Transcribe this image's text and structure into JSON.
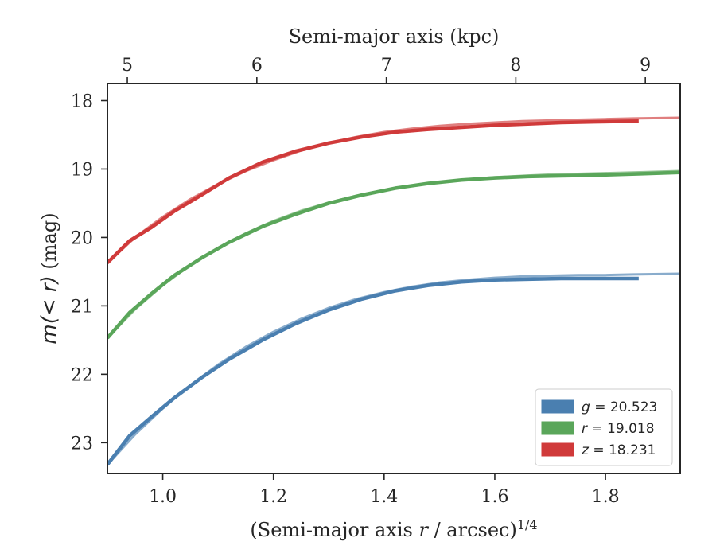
{
  "chart_data": {
    "type": "line",
    "xlabel": "(Semi-major axis r / arcsec)1/4",
    "xlabel_parts": {
      "prefix": "(Semi-major axis ",
      "var": "r",
      "mid": " / arcsec)",
      "sup": "1/4"
    },
    "ylabel": "m(< r) (mag)",
    "ylabel_parts": {
      "math": "m(< r)",
      "unit": " (mag)"
    },
    "top_xlabel": "Semi-major axis (kpc)",
    "xlim": [
      0.9,
      1.935
    ],
    "ylim": [
      23.45,
      17.75
    ],
    "y_inverted": true,
    "xticks": [
      1.0,
      1.2,
      1.4,
      1.6,
      1.8
    ],
    "xtick_labels": [
      "1.0",
      "1.2",
      "1.4",
      "1.6",
      "1.8"
    ],
    "yticks": [
      18,
      19,
      20,
      21,
      22,
      23
    ],
    "ytick_labels": [
      "18",
      "19",
      "20",
      "21",
      "22",
      "23"
    ],
    "top_xticks_kpc": [
      5,
      6,
      7,
      8,
      9
    ],
    "top_xtick_labels": [
      "5",
      "6",
      "7",
      "8",
      "9"
    ],
    "top_axis_x_at_5kpc": 0.936,
    "top_axis_x_at_9kpc": 1.872,
    "legend_position": "lower right",
    "grid": false,
    "series": [
      {
        "name": "g = 20.523",
        "var": "g",
        "value": "20.523",
        "color": "#4a7fb0",
        "x": [
          0.9,
          0.94,
          0.98,
          1.02,
          1.07,
          1.12,
          1.18,
          1.24,
          1.3,
          1.36,
          1.42,
          1.48,
          1.54,
          1.6,
          1.66,
          1.72,
          1.78,
          1.86
        ],
        "y": [
          23.32,
          22.9,
          22.62,
          22.35,
          22.05,
          21.78,
          21.5,
          21.26,
          21.06,
          20.9,
          20.78,
          20.7,
          20.65,
          20.62,
          20.61,
          20.6,
          20.6,
          20.6
        ],
        "model_x": [
          0.9,
          0.95,
          1.0,
          1.05,
          1.1,
          1.15,
          1.2,
          1.25,
          1.3,
          1.35,
          1.4,
          1.45,
          1.5,
          1.55,
          1.6,
          1.65,
          1.7,
          1.75,
          1.8,
          1.85,
          1.935
        ],
        "model_y": [
          23.32,
          22.88,
          22.5,
          22.16,
          21.86,
          21.6,
          21.38,
          21.19,
          21.03,
          20.9,
          20.8,
          20.72,
          20.66,
          20.62,
          20.59,
          20.57,
          20.56,
          20.55,
          20.55,
          20.54,
          20.53
        ]
      },
      {
        "name": "r = 19.018",
        "var": "r",
        "value": "19.018",
        "color": "#5aa65a",
        "x": [
          0.9,
          0.94,
          0.98,
          1.02,
          1.07,
          1.12,
          1.18,
          1.24,
          1.3,
          1.36,
          1.42,
          1.48,
          1.54,
          1.6,
          1.66,
          1.72,
          1.78,
          1.86,
          1.935
        ],
        "y": [
          21.47,
          21.1,
          20.82,
          20.56,
          20.3,
          20.07,
          19.84,
          19.66,
          19.5,
          19.38,
          19.28,
          19.21,
          19.16,
          19.13,
          19.11,
          19.1,
          19.09,
          19.07,
          19.05
        ],
        "model_x": [
          0.9,
          0.95,
          1.0,
          1.05,
          1.1,
          1.15,
          1.2,
          1.25,
          1.3,
          1.35,
          1.4,
          1.45,
          1.5,
          1.55,
          1.6,
          1.65,
          1.7,
          1.75,
          1.8,
          1.85,
          1.935
        ],
        "model_y": [
          21.47,
          21.05,
          20.7,
          20.4,
          20.15,
          19.94,
          19.76,
          19.61,
          19.49,
          19.39,
          19.31,
          19.24,
          19.19,
          19.15,
          19.12,
          19.1,
          19.08,
          19.07,
          19.06,
          19.05,
          19.03
        ]
      },
      {
        "name": "z = 18.231",
        "var": "z",
        "value": "18.231",
        "color": "#d03a3a",
        "x": [
          0.9,
          0.94,
          0.98,
          1.02,
          1.07,
          1.12,
          1.18,
          1.24,
          1.3,
          1.36,
          1.42,
          1.48,
          1.54,
          1.6,
          1.66,
          1.72,
          1.78,
          1.86
        ],
        "y": [
          20.37,
          20.05,
          19.85,
          19.62,
          19.38,
          19.13,
          18.9,
          18.74,
          18.62,
          18.53,
          18.46,
          18.42,
          18.39,
          18.36,
          18.34,
          18.32,
          18.31,
          18.3
        ],
        "model_x": [
          0.9,
          0.95,
          1.0,
          1.05,
          1.1,
          1.15,
          1.2,
          1.25,
          1.3,
          1.35,
          1.4,
          1.45,
          1.5,
          1.55,
          1.6,
          1.65,
          1.7,
          1.75,
          1.8,
          1.85,
          1.935
        ],
        "model_y": [
          20.37,
          20.0,
          19.7,
          19.44,
          19.22,
          19.03,
          18.87,
          18.73,
          18.62,
          18.53,
          18.46,
          18.41,
          18.37,
          18.34,
          18.32,
          18.3,
          18.29,
          18.28,
          18.27,
          18.26,
          18.25
        ]
      }
    ]
  }
}
